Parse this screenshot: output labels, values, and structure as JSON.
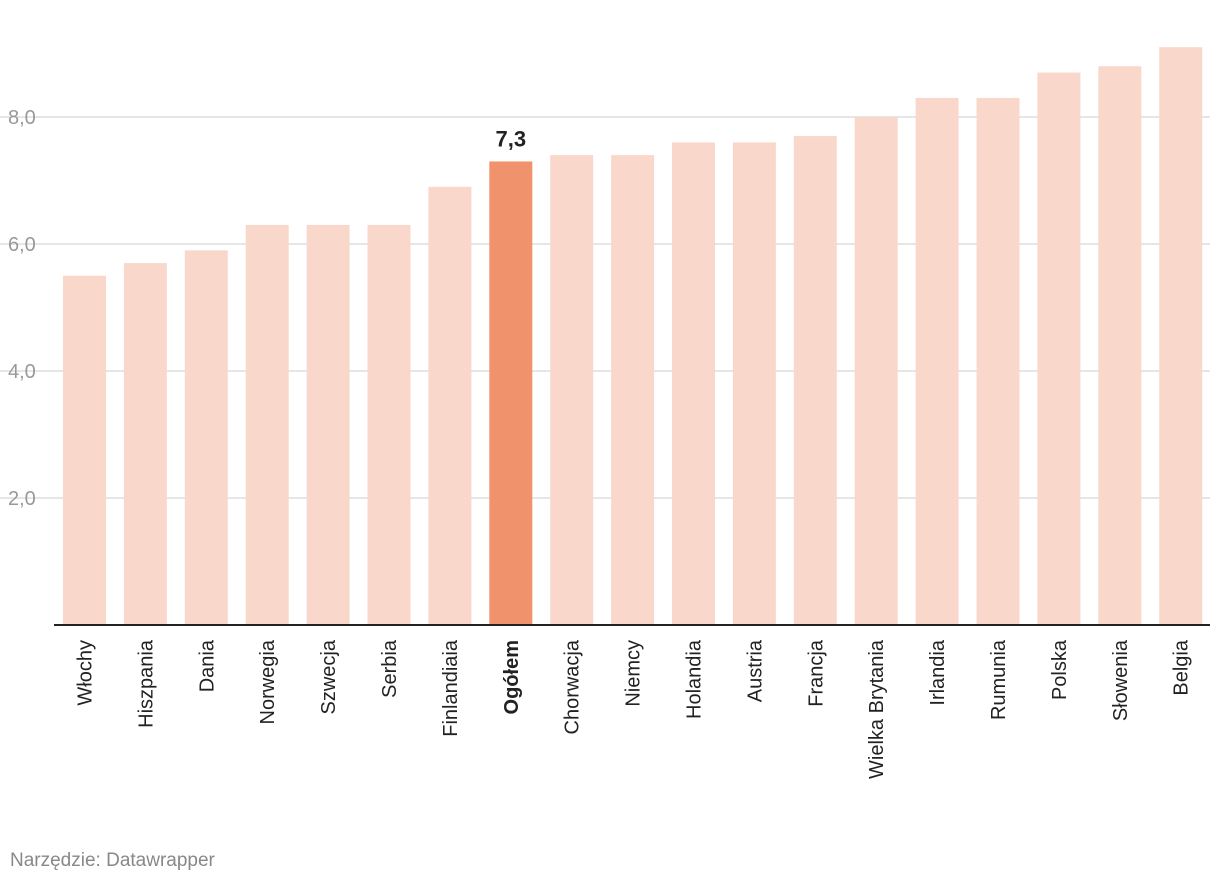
{
  "chart_data": {
    "type": "bar",
    "categories": [
      "Włochy",
      "Hiszpania",
      "Dania",
      "Norwegia",
      "Szwecja",
      "Serbia",
      "Finlandiaia",
      "Ogółem",
      "Chorwacja",
      "Niemcy",
      "Holandia",
      "Austria",
      "Francja",
      "Wielka Brytania",
      "Irlandia",
      "Rumunia",
      "Polska",
      "Słowenia",
      "Belgia"
    ],
    "values": [
      5.5,
      5.7,
      5.9,
      6.3,
      6.3,
      6.3,
      6.9,
      7.3,
      7.4,
      7.4,
      7.6,
      7.6,
      7.7,
      8.0,
      8.3,
      8.3,
      8.7,
      8.8,
      9.1
    ],
    "highlight_category": "Ogółem",
    "highlight_label": "7,3",
    "yticks": [
      "2,0",
      "4,0",
      "6,0",
      "8,0"
    ],
    "ytick_values": [
      2,
      4,
      6,
      8
    ],
    "ylim": [
      0,
      9.1
    ],
    "grid": true,
    "colors": {
      "bar": "#f9d8cb",
      "highlight": "#f0936c",
      "grid": "#dddddd",
      "axis": "#222222"
    }
  },
  "footer": {
    "credit": "Narzędzie: Datawrapper"
  }
}
